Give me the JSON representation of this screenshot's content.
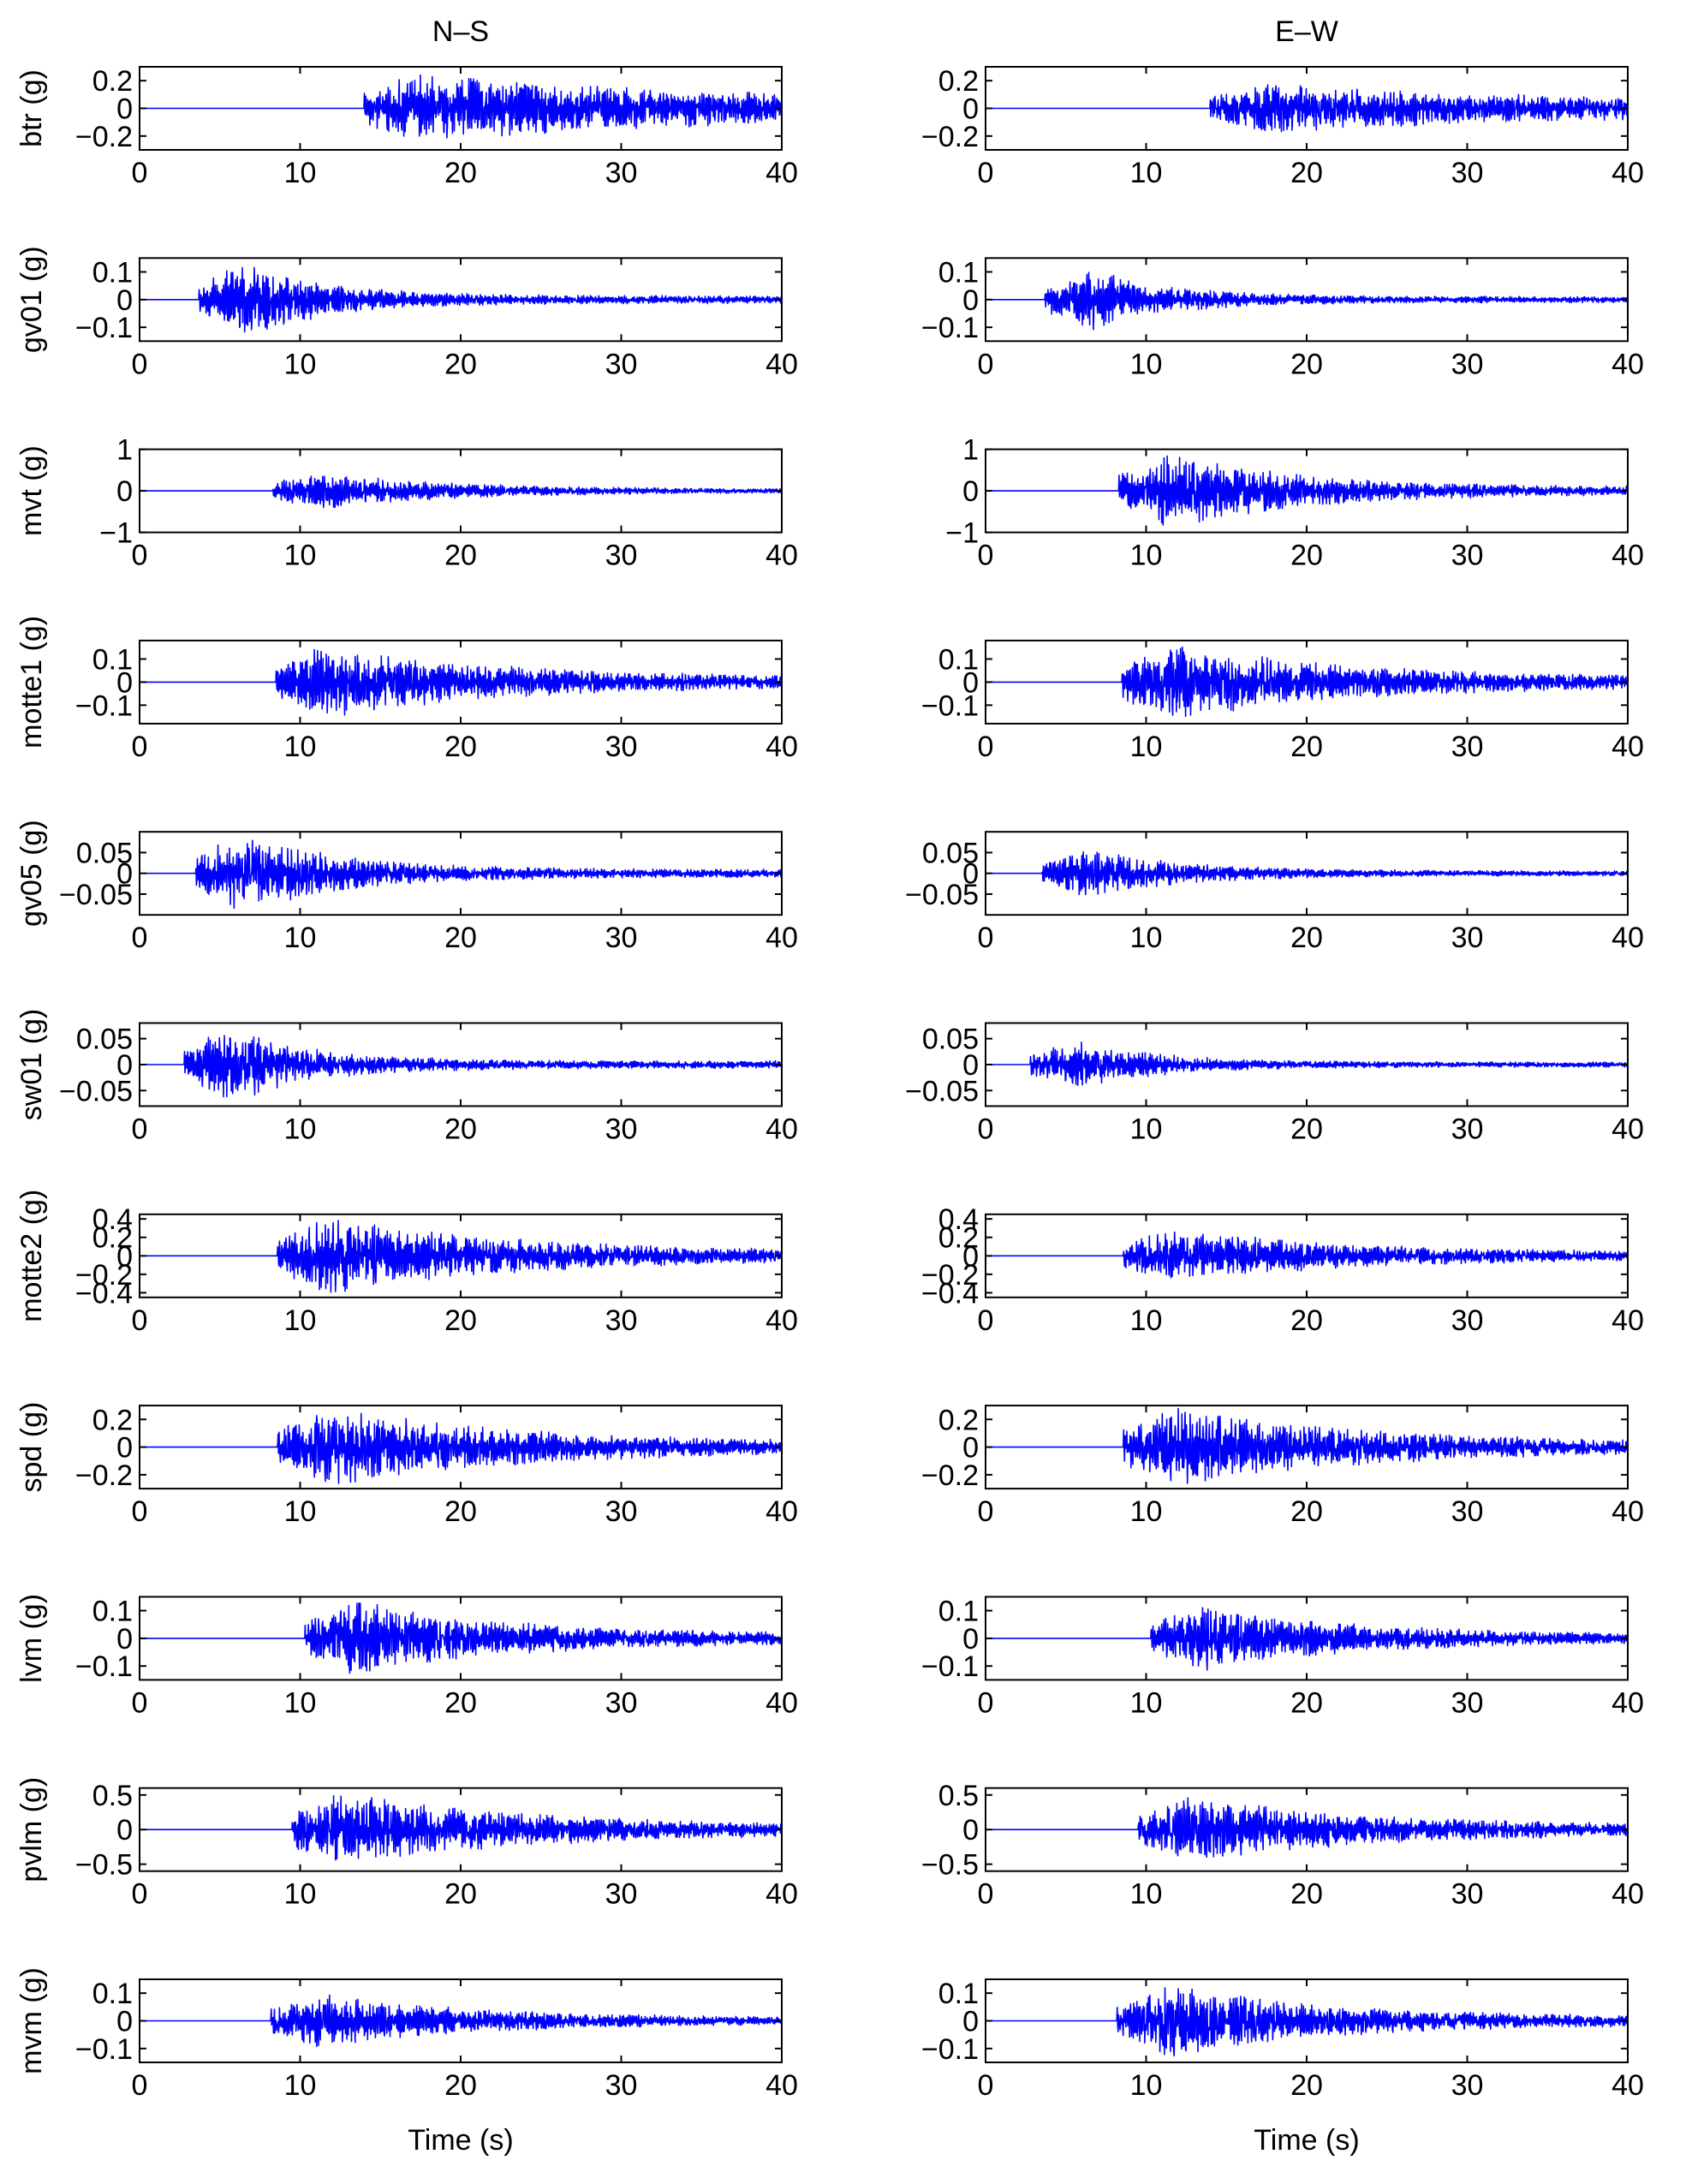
{
  "figure": {
    "columns": [
      "N–S",
      "E–W"
    ],
    "xlabel": "Time (s)",
    "trace_color": "#0000ff"
  },
  "chart_data": [
    {
      "type": "line",
      "station": "btr",
      "column": "N–S",
      "ylabel": "btr (g)",
      "xlim": [
        0,
        40
      ],
      "ylim": [
        -0.3,
        0.3
      ],
      "xticks": [
        0,
        10,
        20,
        30,
        40
      ],
      "yticks": [
        -0.2,
        0,
        0.2
      ],
      "ytick_labels": [
        "−0.2",
        "0",
        "0.2"
      ],
      "onset": 14,
      "pga": 0.25,
      "decay": 25
    },
    {
      "type": "line",
      "station": "btr",
      "column": "E–W",
      "ylabel": "btr (g)",
      "xlim": [
        0,
        40
      ],
      "ylim": [
        -0.3,
        0.3
      ],
      "xticks": [
        0,
        10,
        20,
        30,
        40
      ],
      "yticks": [
        -0.2,
        0,
        0.2
      ],
      "ytick_labels": [
        "−0.2",
        "0",
        "0.2"
      ],
      "onset": 14,
      "pga": 0.18,
      "decay": 25
    },
    {
      "type": "line",
      "station": "gv01",
      "column": "N–S",
      "ylabel": "gv01 (g)",
      "xlim": [
        0,
        40
      ],
      "ylim": [
        -0.15,
        0.15
      ],
      "xticks": [
        0,
        10,
        20,
        30,
        40
      ],
      "yticks": [
        -0.1,
        0,
        0.1
      ],
      "ytick_labels": [
        "−0.1",
        "0",
        "0.1"
      ],
      "onset": 3.7,
      "pga": 0.14,
      "decay": 5
    },
    {
      "type": "line",
      "station": "gv01",
      "column": "E–W",
      "ylabel": "gv01 (g)",
      "xlim": [
        0,
        40
      ],
      "ylim": [
        -0.15,
        0.15
      ],
      "xticks": [
        0,
        10,
        20,
        30,
        40
      ],
      "yticks": [
        -0.1,
        0,
        0.1
      ],
      "ytick_labels": [
        "−0.1",
        "0",
        "0.1"
      ],
      "onset": 3.7,
      "pga": 0.11,
      "decay": 5
    },
    {
      "type": "line",
      "station": "mvt",
      "column": "N–S",
      "ylabel": "mvt (g)",
      "xlim": [
        0,
        40
      ],
      "ylim": [
        -1,
        1
      ],
      "xticks": [
        0,
        10,
        20,
        30,
        40
      ],
      "yticks": [
        -1,
        0,
        1
      ],
      "ytick_labels": [
        "−1",
        "0",
        "1"
      ],
      "onset": 8.3,
      "pga": 0.45,
      "decay": 8
    },
    {
      "type": "line",
      "station": "mvt",
      "column": "E–W",
      "ylabel": "mvt (g)",
      "xlim": [
        0,
        40
      ],
      "ylim": [
        -1,
        1
      ],
      "xticks": [
        0,
        10,
        20,
        30,
        40
      ],
      "yticks": [
        -1,
        0,
        1
      ],
      "ytick_labels": [
        "−1",
        "0",
        "1"
      ],
      "onset": 8.3,
      "pga": 0.95,
      "decay": 8
    },
    {
      "type": "line",
      "station": "motte1",
      "column": "N–S",
      "ylabel": "motte1 (g)",
      "xlim": [
        0,
        40
      ],
      "ylim": [
        -0.18,
        0.18
      ],
      "xticks": [
        0,
        10,
        20,
        30,
        40
      ],
      "yticks": [
        -0.1,
        0,
        0.1
      ],
      "ytick_labels": [
        "−0.1",
        "0",
        "0.1"
      ],
      "onset": 8.5,
      "pga": 0.16,
      "decay": 12
    },
    {
      "type": "line",
      "station": "motte1",
      "column": "E–W",
      "ylabel": "motte1 (g)",
      "xlim": [
        0,
        40
      ],
      "ylim": [
        -0.18,
        0.18
      ],
      "xticks": [
        0,
        10,
        20,
        30,
        40
      ],
      "yticks": [
        -0.1,
        0,
        0.1
      ],
      "ytick_labels": [
        "−0.1",
        "0",
        "0.1"
      ],
      "onset": 8.5,
      "pga": 0.17,
      "decay": 12
    },
    {
      "type": "line",
      "station": "gv05",
      "column": "N–S",
      "ylabel": "gv05 (g)",
      "xlim": [
        0,
        40
      ],
      "ylim": [
        -0.1,
        0.1
      ],
      "xticks": [
        0,
        10,
        20,
        30,
        40
      ],
      "yticks": [
        -0.05,
        0,
        0.05
      ],
      "ytick_labels": [
        "−0.05",
        "0",
        "0.05"
      ],
      "onset": 3.5,
      "pga": 0.1,
      "decay": 6
    },
    {
      "type": "line",
      "station": "gv05",
      "column": "E–W",
      "ylabel": "gv05 (g)",
      "xlim": [
        0,
        40
      ],
      "ylim": [
        -0.1,
        0.1
      ],
      "xticks": [
        0,
        10,
        20,
        30,
        40
      ],
      "yticks": [
        -0.05,
        0,
        0.05
      ],
      "ytick_labels": [
        "−0.05",
        "0",
        "0.05"
      ],
      "onset": 3.5,
      "pga": 0.06,
      "decay": 6
    },
    {
      "type": "line",
      "station": "sw01",
      "column": "N–S",
      "ylabel": "sw01 (g)",
      "xlim": [
        0,
        40
      ],
      "ylim": [
        -0.08,
        0.08
      ],
      "xticks": [
        0,
        10,
        20,
        30,
        40
      ],
      "yticks": [
        -0.05,
        0,
        0.05
      ],
      "ytick_labels": [
        "−0.05",
        "0",
        "0.05"
      ],
      "onset": 2.8,
      "pga": 0.075,
      "decay": 5
    },
    {
      "type": "line",
      "station": "sw01",
      "column": "E–W",
      "ylabel": "sw01 (g)",
      "xlim": [
        0,
        40
      ],
      "ylim": [
        -0.08,
        0.08
      ],
      "xticks": [
        0,
        10,
        20,
        30,
        40
      ],
      "yticks": [
        -0.05,
        0,
        0.05
      ],
      "ytick_labels": [
        "−0.05",
        "0",
        "0.05"
      ],
      "onset": 2.8,
      "pga": 0.05,
      "decay": 5
    },
    {
      "type": "line",
      "station": "motte2",
      "column": "N–S",
      "ylabel": "motte2 (g)",
      "xlim": [
        0,
        40
      ],
      "ylim": [
        -0.45,
        0.45
      ],
      "xticks": [
        0,
        10,
        20,
        30,
        40
      ],
      "yticks": [
        -0.4,
        -0.2,
        0,
        0.2,
        0.4
      ],
      "ytick_labels": [
        "−0.4",
        "−0.2",
        "0",
        "0.2",
        "0.4"
      ],
      "onset": 8.6,
      "pga": 0.42,
      "decay": 12
    },
    {
      "type": "line",
      "station": "motte2",
      "column": "E–W",
      "ylabel": "motte2 (g)",
      "xlim": [
        0,
        40
      ],
      "ylim": [
        -0.45,
        0.45
      ],
      "xticks": [
        0,
        10,
        20,
        30,
        40
      ],
      "yticks": [
        -0.4,
        -0.2,
        0,
        0.2,
        0.4
      ],
      "ytick_labels": [
        "−0.4",
        "−0.2",
        "0",
        "0.2",
        "0.4"
      ],
      "onset": 8.6,
      "pga": 0.3,
      "decay": 12
    },
    {
      "type": "line",
      "station": "spd",
      "column": "N–S",
      "ylabel": "spd (g)",
      "xlim": [
        0,
        40
      ],
      "ylim": [
        -0.3,
        0.3
      ],
      "xticks": [
        0,
        10,
        20,
        30,
        40
      ],
      "yticks": [
        -0.2,
        0,
        0.2
      ],
      "ytick_labels": [
        "−0.2",
        "0",
        "0.2"
      ],
      "onset": 8.6,
      "pga": 0.3,
      "decay": 12
    },
    {
      "type": "line",
      "station": "spd",
      "column": "E–W",
      "ylabel": "spd (g)",
      "xlim": [
        0,
        40
      ],
      "ylim": [
        -0.3,
        0.3
      ],
      "xticks": [
        0,
        10,
        20,
        30,
        40
      ],
      "yticks": [
        -0.2,
        0,
        0.2
      ],
      "ytick_labels": [
        "−0.2",
        "0",
        "0.2"
      ],
      "onset": 8.6,
      "pga": 0.3,
      "decay": 12
    },
    {
      "type": "line",
      "station": "lvm",
      "column": "N–S",
      "ylabel": "lvm (g)",
      "xlim": [
        0,
        40
      ],
      "ylim": [
        -0.15,
        0.15
      ],
      "xticks": [
        0,
        10,
        20,
        30,
        40
      ],
      "yticks": [
        -0.1,
        0,
        0.1
      ],
      "ytick_labels": [
        "−0.1",
        "0",
        "0.1"
      ],
      "onset": 10.3,
      "pga": 0.14,
      "decay": 10
    },
    {
      "type": "line",
      "station": "lvm",
      "column": "E–W",
      "ylabel": "lvm (g)",
      "xlim": [
        0,
        40
      ],
      "ylim": [
        -0.15,
        0.15
      ],
      "xticks": [
        0,
        10,
        20,
        30,
        40
      ],
      "yticks": [
        -0.1,
        0,
        0.1
      ],
      "ytick_labels": [
        "−0.1",
        "0",
        "0.1"
      ],
      "onset": 10.3,
      "pga": 0.12,
      "decay": 10
    },
    {
      "type": "line",
      "station": "pvlm",
      "column": "N–S",
      "ylabel": "pvlm (g)",
      "xlim": [
        0,
        40
      ],
      "ylim": [
        -0.6,
        0.6
      ],
      "xticks": [
        0,
        10,
        20,
        30,
        40
      ],
      "yticks": [
        -0.5,
        0,
        0.5
      ],
      "ytick_labels": [
        "−0.5",
        "0",
        "0.5"
      ],
      "onset": 9.5,
      "pga": 0.55,
      "decay": 12
    },
    {
      "type": "line",
      "station": "pvlm",
      "column": "E–W",
      "ylabel": "pvlm (g)",
      "xlim": [
        0,
        40
      ],
      "ylim": [
        -0.6,
        0.6
      ],
      "xticks": [
        0,
        10,
        20,
        30,
        40
      ],
      "yticks": [
        -0.5,
        0,
        0.5
      ],
      "ytick_labels": [
        "−0.5",
        "0",
        "0.5"
      ],
      "onset": 9.5,
      "pga": 0.5,
      "decay": 12
    },
    {
      "type": "line",
      "station": "mvm",
      "column": "N–S",
      "ylabel": "mvm (g)",
      "xlim": [
        0,
        40
      ],
      "ylim": [
        -0.15,
        0.15
      ],
      "xticks": [
        0,
        10,
        20,
        30,
        40
      ],
      "yticks": [
        -0.1,
        0,
        0.1
      ],
      "ytick_labels": [
        "−0.1",
        "0",
        "0.1"
      ],
      "onset": 8.2,
      "pga": 0.1,
      "decay": 10
    },
    {
      "type": "line",
      "station": "mvm",
      "column": "E–W",
      "ylabel": "mvm (g)",
      "xlim": [
        0,
        40
      ],
      "ylim": [
        -0.15,
        0.15
      ],
      "xticks": [
        0,
        10,
        20,
        30,
        40
      ],
      "yticks": [
        -0.1,
        0,
        0.1
      ],
      "ytick_labels": [
        "−0.1",
        "0",
        "0.1"
      ],
      "onset": 8.2,
      "pga": 0.14,
      "decay": 10
    }
  ]
}
